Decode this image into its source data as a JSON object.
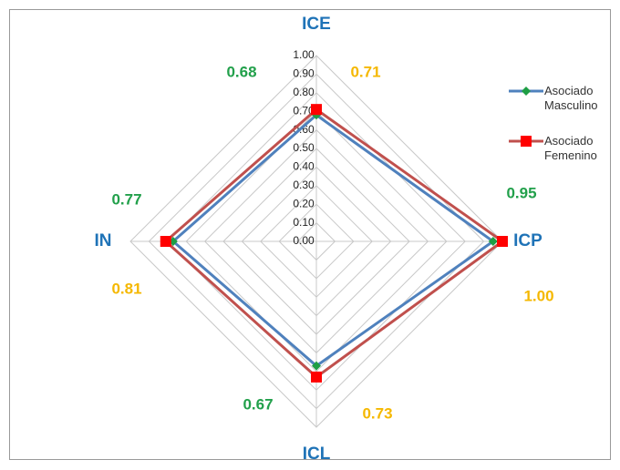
{
  "chart_data": {
    "type": "radar",
    "categories": [
      "ICE",
      "ICP",
      "ICL",
      "IN"
    ],
    "rlim": [
      0,
      1
    ],
    "rticks": [
      {
        "value": 0,
        "label": "0.00"
      },
      {
        "value": 0.1,
        "label": "0.10"
      },
      {
        "value": 0.2,
        "label": "0.20"
      },
      {
        "value": 0.3,
        "label": "0.30"
      },
      {
        "value": 0.4,
        "label": "0.40"
      },
      {
        "value": 0.5,
        "label": "0.50"
      },
      {
        "value": 0.6,
        "label": "0.60"
      },
      {
        "value": 0.7,
        "label": "0.70"
      },
      {
        "value": 0.8,
        "label": "0.80"
      },
      {
        "value": 0.9,
        "label": "0.90"
      },
      {
        "value": 1,
        "label": "1.00"
      }
    ],
    "grid": true,
    "legend": "right",
    "series": [
      {
        "name": "Asociado Masculino",
        "color": "#4f81bd",
        "marker_color": "#1e9e44",
        "label_color": "#22a04b",
        "values": [
          0.68,
          0.95,
          0.67,
          0.77
        ],
        "value_labels": [
          "0.68",
          "0.95",
          "0.67",
          "0.77"
        ]
      },
      {
        "name": "Asociado Femenino",
        "color": "#c0504d",
        "marker_color": "#ff0000",
        "label_color": "#f5b800",
        "values": [
          0.71,
          1,
          0.73,
          0.81
        ],
        "value_labels": [
          "0.71",
          "1.00",
          "0.73",
          "0.81"
        ]
      }
    ]
  }
}
